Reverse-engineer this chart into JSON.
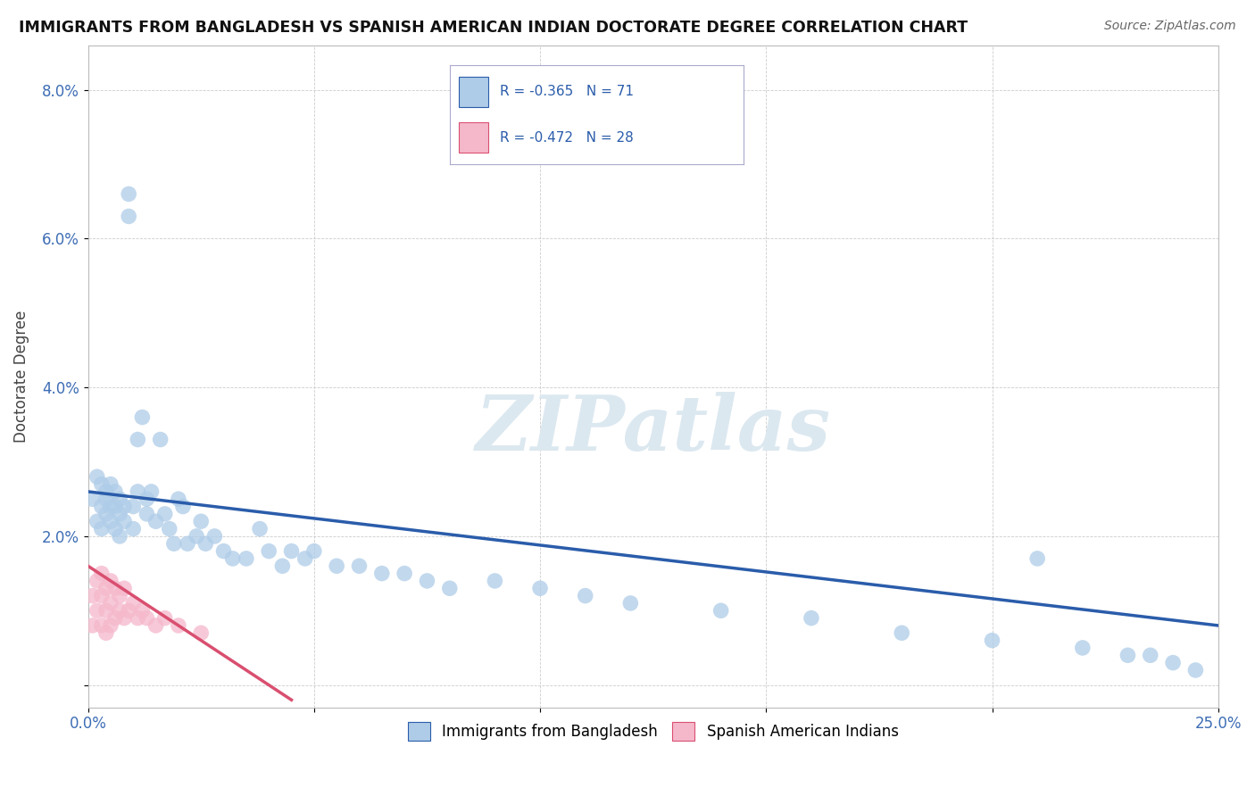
{
  "title": "IMMIGRANTS FROM BANGLADESH VS SPANISH AMERICAN INDIAN DOCTORATE DEGREE CORRELATION CHART",
  "source": "Source: ZipAtlas.com",
  "ylabel": "Doctorate Degree",
  "y_ticks": [
    0.0,
    0.02,
    0.04,
    0.06,
    0.08
  ],
  "y_tick_labels": [
    "",
    "2.0%",
    "4.0%",
    "6.0%",
    "8.0%"
  ],
  "xmin": 0.0,
  "xmax": 0.25,
  "ymin": -0.003,
  "ymax": 0.086,
  "blue_R": -0.365,
  "blue_N": 71,
  "pink_R": -0.472,
  "pink_N": 28,
  "blue_color": "#aecce8",
  "pink_color": "#f5b8cb",
  "blue_line_color": "#2a5caa",
  "pink_line_color": "#d94f70",
  "watermark_color": "#dce8f0",
  "blue_line_start_y": 0.026,
  "blue_line_end_y": 0.008,
  "pink_line_start_y": 0.016,
  "pink_line_end_y": -0.002,
  "blue_scatter_x": [
    0.001,
    0.002,
    0.002,
    0.003,
    0.003,
    0.003,
    0.004,
    0.004,
    0.004,
    0.005,
    0.005,
    0.005,
    0.006,
    0.006,
    0.006,
    0.007,
    0.007,
    0.007,
    0.008,
    0.008,
    0.009,
    0.009,
    0.01,
    0.01,
    0.011,
    0.011,
    0.012,
    0.013,
    0.013,
    0.014,
    0.015,
    0.016,
    0.017,
    0.018,
    0.019,
    0.02,
    0.021,
    0.022,
    0.024,
    0.025,
    0.026,
    0.028,
    0.03,
    0.032,
    0.035,
    0.038,
    0.04,
    0.043,
    0.045,
    0.048,
    0.05,
    0.055,
    0.06,
    0.065,
    0.07,
    0.075,
    0.08,
    0.09,
    0.1,
    0.11,
    0.12,
    0.14,
    0.16,
    0.18,
    0.2,
    0.21,
    0.22,
    0.23,
    0.235,
    0.24,
    0.245
  ],
  "blue_scatter_y": [
    0.025,
    0.028,
    0.022,
    0.024,
    0.027,
    0.021,
    0.025,
    0.023,
    0.026,
    0.022,
    0.024,
    0.027,
    0.021,
    0.024,
    0.026,
    0.023,
    0.02,
    0.025,
    0.022,
    0.024,
    0.063,
    0.066,
    0.021,
    0.024,
    0.033,
    0.026,
    0.036,
    0.023,
    0.025,
    0.026,
    0.022,
    0.033,
    0.023,
    0.021,
    0.019,
    0.025,
    0.024,
    0.019,
    0.02,
    0.022,
    0.019,
    0.02,
    0.018,
    0.017,
    0.017,
    0.021,
    0.018,
    0.016,
    0.018,
    0.017,
    0.018,
    0.016,
    0.016,
    0.015,
    0.015,
    0.014,
    0.013,
    0.014,
    0.013,
    0.012,
    0.011,
    0.01,
    0.009,
    0.007,
    0.006,
    0.017,
    0.005,
    0.004,
    0.004,
    0.003,
    0.002
  ],
  "pink_scatter_x": [
    0.001,
    0.001,
    0.002,
    0.002,
    0.003,
    0.003,
    0.003,
    0.004,
    0.004,
    0.004,
    0.005,
    0.005,
    0.005,
    0.006,
    0.006,
    0.007,
    0.007,
    0.008,
    0.008,
    0.009,
    0.01,
    0.011,
    0.012,
    0.013,
    0.015,
    0.017,
    0.02,
    0.025
  ],
  "pink_scatter_y": [
    0.012,
    0.008,
    0.014,
    0.01,
    0.015,
    0.012,
    0.008,
    0.013,
    0.01,
    0.007,
    0.014,
    0.011,
    0.008,
    0.013,
    0.009,
    0.012,
    0.01,
    0.013,
    0.009,
    0.01,
    0.011,
    0.009,
    0.01,
    0.009,
    0.008,
    0.009,
    0.008,
    0.007
  ]
}
